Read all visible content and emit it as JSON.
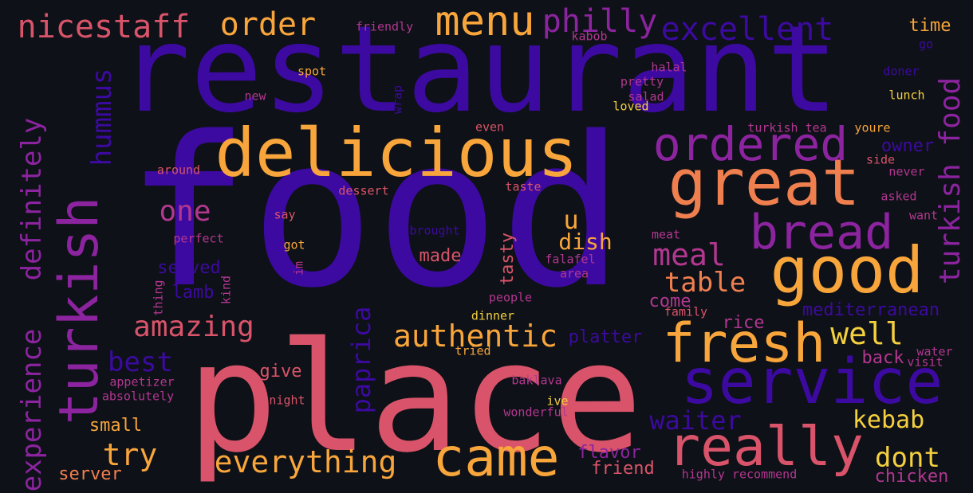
{
  "wordcloud": {
    "palette": {
      "indigo": "#3c0aa0",
      "purple": "#8c24a0",
      "magenta": "#b23790",
      "pink": "#d9546a",
      "orange": "#f07f4f",
      "amber": "#f8a53b",
      "yellow": "#f4d03f"
    },
    "words": [
      {
        "text": "restaurant",
        "color": "indigo"
      },
      {
        "text": "food",
        "color": "indigo"
      },
      {
        "text": "place",
        "color": "pink"
      },
      {
        "text": "delicious",
        "color": "amber"
      },
      {
        "text": "great",
        "color": "orange"
      },
      {
        "text": "good",
        "color": "amber"
      },
      {
        "text": "service",
        "color": "indigo"
      },
      {
        "text": "fresh",
        "color": "amber"
      },
      {
        "text": "really",
        "color": "pink"
      },
      {
        "text": "came",
        "color": "amber"
      },
      {
        "text": "turkish",
        "color": "purple"
      },
      {
        "text": "bread",
        "color": "purple"
      },
      {
        "text": "ordered",
        "color": "purple"
      },
      {
        "text": "menu",
        "color": "amber"
      },
      {
        "text": "philly",
        "color": "purple"
      },
      {
        "text": "nicestaff",
        "color": "pink"
      },
      {
        "text": "order",
        "color": "amber"
      },
      {
        "text": "excellent",
        "color": "indigo"
      },
      {
        "text": "experience",
        "color": "purple"
      },
      {
        "text": "definitely",
        "color": "purple"
      },
      {
        "text": "turkish food",
        "color": "purple"
      },
      {
        "text": "hummus",
        "color": "indigo"
      },
      {
        "text": "one",
        "color": "magenta"
      },
      {
        "text": "amazing",
        "color": "pink"
      },
      {
        "text": "authentic",
        "color": "amber"
      },
      {
        "text": "everything",
        "color": "amber"
      },
      {
        "text": "try",
        "color": "amber"
      },
      {
        "text": "best",
        "color": "indigo"
      },
      {
        "text": "meal",
        "color": "magenta"
      },
      {
        "text": "table",
        "color": "orange"
      },
      {
        "text": "well",
        "color": "yellow"
      },
      {
        "text": "waiter",
        "color": "indigo"
      },
      {
        "text": "kebab",
        "color": "yellow"
      },
      {
        "text": "dont",
        "color": "yellow"
      },
      {
        "text": "paprica",
        "color": "indigo"
      },
      {
        "text": "u",
        "color": "amber"
      },
      {
        "text": "dish",
        "color": "amber"
      },
      {
        "text": "tasty",
        "color": "pink"
      },
      {
        "text": "made",
        "color": "pink"
      },
      {
        "text": "served",
        "color": "indigo"
      },
      {
        "text": "lamb",
        "color": "indigo"
      },
      {
        "text": "mediterranean",
        "color": "indigo"
      },
      {
        "text": "owner",
        "color": "indigo"
      },
      {
        "text": "come",
        "color": "magenta"
      },
      {
        "text": "platter",
        "color": "indigo"
      },
      {
        "text": "rice",
        "color": "magenta"
      },
      {
        "text": "back",
        "color": "magenta"
      },
      {
        "text": "small",
        "color": "amber"
      },
      {
        "text": "give",
        "color": "pink"
      },
      {
        "text": "server",
        "color": "orange"
      },
      {
        "text": "friend",
        "color": "pink"
      },
      {
        "text": "flavor",
        "color": "purple"
      },
      {
        "text": "chicken",
        "color": "magenta"
      },
      {
        "text": "time",
        "color": "amber"
      },
      {
        "text": "friendly",
        "color": "magenta"
      },
      {
        "text": "kabob",
        "color": "magenta"
      },
      {
        "text": "spot",
        "color": "amber"
      },
      {
        "text": "halal",
        "color": "magenta"
      },
      {
        "text": "pretty",
        "color": "magenta"
      },
      {
        "text": "salad",
        "color": "magenta"
      },
      {
        "text": "loved",
        "color": "yellow"
      },
      {
        "text": "lunch",
        "color": "yellow"
      },
      {
        "text": "go",
        "color": "indigo"
      },
      {
        "text": "doner",
        "color": "indigo"
      },
      {
        "text": "new",
        "color": "magenta"
      },
      {
        "text": "wrap",
        "color": "indigo"
      },
      {
        "text": "even",
        "color": "pink"
      },
      {
        "text": "turkish tea",
        "color": "magenta"
      },
      {
        "text": "youre",
        "color": "amber"
      },
      {
        "text": "side",
        "color": "pink"
      },
      {
        "text": "never",
        "color": "magenta"
      },
      {
        "text": "asked",
        "color": "magenta"
      },
      {
        "text": "want",
        "color": "magenta"
      },
      {
        "text": "around",
        "color": "pink"
      },
      {
        "text": "dessert",
        "color": "pink"
      },
      {
        "text": "taste",
        "color": "pink"
      },
      {
        "text": "say",
        "color": "pink"
      },
      {
        "text": "brought",
        "color": "indigo"
      },
      {
        "text": "meat",
        "color": "magenta"
      },
      {
        "text": "perfect",
        "color": "magenta"
      },
      {
        "text": "got",
        "color": "amber"
      },
      {
        "text": "im",
        "color": "magenta"
      },
      {
        "text": "falafel",
        "color": "magenta"
      },
      {
        "text": "area",
        "color": "magenta"
      },
      {
        "text": "thing",
        "color": "magenta"
      },
      {
        "text": "kind",
        "color": "magenta"
      },
      {
        "text": "people",
        "color": "magenta"
      },
      {
        "text": "dinner",
        "color": "yellow"
      },
      {
        "text": "family",
        "color": "pink"
      },
      {
        "text": "tried",
        "color": "amber"
      },
      {
        "text": "water",
        "color": "magenta"
      },
      {
        "text": "visit",
        "color": "magenta"
      },
      {
        "text": "appetizer",
        "color": "magenta"
      },
      {
        "text": "absolutely",
        "color": "magenta"
      },
      {
        "text": "night",
        "color": "pink"
      },
      {
        "text": "baklava",
        "color": "magenta"
      },
      {
        "text": "ive",
        "color": "yellow"
      },
      {
        "text": "wonderful",
        "color": "magenta"
      },
      {
        "text": "highly recommend",
        "color": "magenta"
      }
    ]
  }
}
